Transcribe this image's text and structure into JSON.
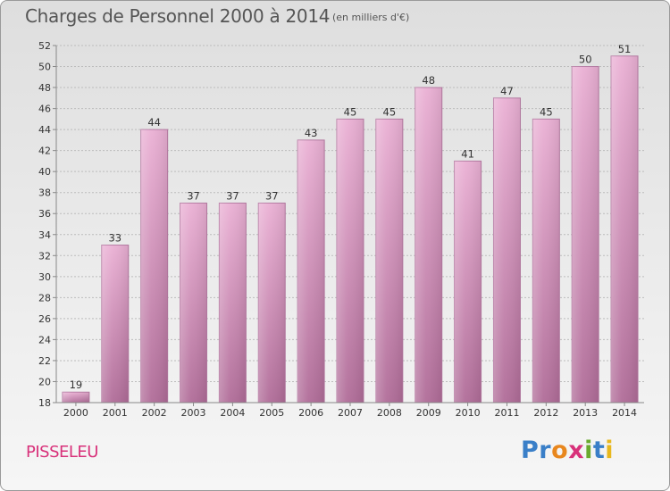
{
  "chart_data": {
    "type": "bar",
    "title": "Charges de Personnel 2000 à 2014",
    "subtitle": "(en milliers d'€)",
    "categories": [
      "2000",
      "2001",
      "2002",
      "2003",
      "2004",
      "2005",
      "2006",
      "2007",
      "2008",
      "2009",
      "2010",
      "2011",
      "2012",
      "2013",
      "2014"
    ],
    "values": [
      19,
      33,
      44,
      37,
      37,
      37,
      43,
      45,
      45,
      48,
      41,
      47,
      45,
      50,
      51
    ],
    "ylim": [
      18,
      52
    ],
    "yticks": [
      18,
      20,
      22,
      24,
      26,
      28,
      30,
      32,
      34,
      36,
      38,
      40,
      42,
      44,
      46,
      48,
      50,
      52
    ],
    "grid": true,
    "bar_color": "#d080b0",
    "xlabel": "",
    "ylabel": ""
  },
  "footer": {
    "commune": "PISSELEU",
    "logo_letters": [
      {
        "char": "P",
        "color": "#3a7fc8"
      },
      {
        "char": "r",
        "color": "#3a7fc8"
      },
      {
        "char": "o",
        "color": "#e8871e"
      },
      {
        "char": "x",
        "color": "#d8317a"
      },
      {
        "char": "i",
        "color": "#6aaa2e"
      },
      {
        "char": "t",
        "color": "#3a7fc8"
      },
      {
        "char": "i",
        "color": "#e8b81e"
      }
    ]
  }
}
